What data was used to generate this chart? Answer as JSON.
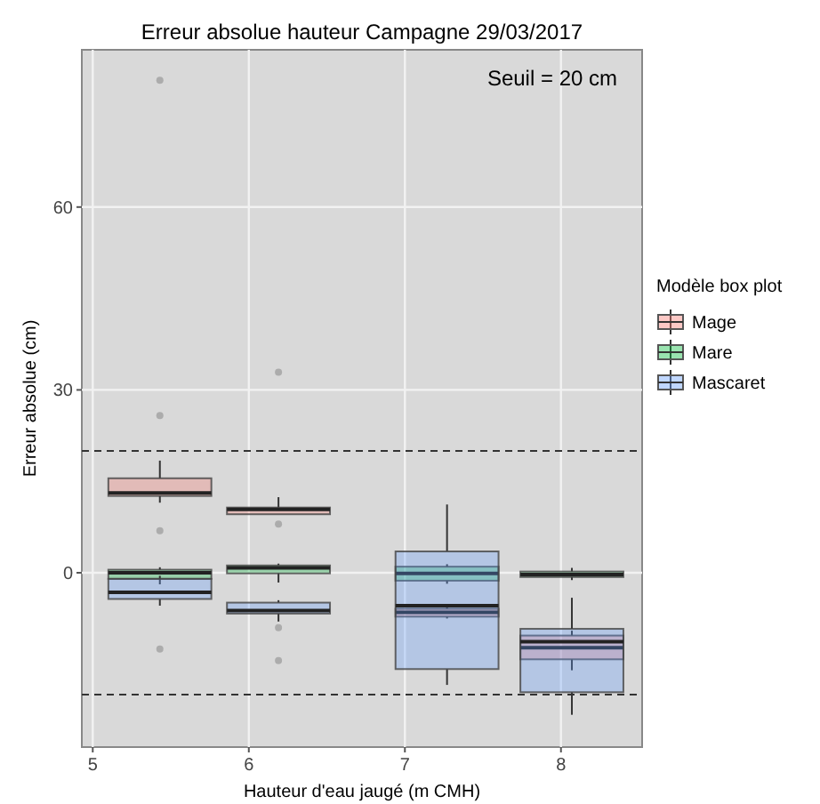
{
  "chart_data": {
    "type": "box",
    "title": "Erreur absolue hauteur Campagne 29/03/2017",
    "xlabel": "Hauteur d'eau jaugé (m CMH)",
    "ylabel": "Erreur absolue (cm)",
    "legend_title": "Modèle box plot",
    "legend": "right",
    "grid": true,
    "xlim": [
      4.93,
      8.52
    ],
    "xticks": [
      5,
      6,
      7,
      8
    ],
    "ylim": [
      -28.6,
      85.8
    ],
    "yticks": [
      0,
      30,
      60
    ],
    "ref_lines": [
      {
        "axis": "y",
        "value": 20,
        "line_style": "dashed"
      },
      {
        "axis": "y",
        "value": -20,
        "line_style": "dashed"
      }
    ],
    "annotations": [
      "Seuil = 20 cm"
    ],
    "series": [
      {
        "name": "Mage",
        "color": "#f8766d",
        "x": [
          5.43,
          6.19,
          7.27,
          8.07
        ],
        "boxes": [
          {
            "low": 11.5,
            "q1": 12.6,
            "median": 13.1,
            "q3": 15.5,
            "high": 18.4,
            "outliers": [
              80.8,
              25.8,
              6.9
            ]
          },
          {
            "low": 9.6,
            "q1": 9.6,
            "median": 10.4,
            "q3": 10.7,
            "high": 12.4,
            "outliers": [
              32.9,
              8.0
            ]
          },
          {
            "low": -7.5,
            "q1": -7.2,
            "median": -6.5,
            "q3": -5.9,
            "high": -5.6
          },
          {
            "low": -16.0,
            "q1": -14.2,
            "median": -12.3,
            "q3": -10.3,
            "high": -9.5
          }
        ]
      },
      {
        "name": "Mare",
        "color": "#00ba38",
        "x": [
          5.43,
          6.19,
          7.27,
          8.07
        ],
        "boxes": [
          {
            "low": -1.9,
            "q1": -1.0,
            "median": 0,
            "q3": 0.5,
            "high": 0.9
          },
          {
            "low": -1.6,
            "q1": -0.1,
            "median": 0.8,
            "q3": 1.2,
            "high": 1.5
          },
          {
            "low": -1.8,
            "q1": -1.3,
            "median": -0.1,
            "q3": 1.0,
            "high": 1.4
          },
          {
            "low": -1.2,
            "q1": -0.7,
            "median": -0.3,
            "q3": 0.2,
            "high": 0.8
          }
        ]
      },
      {
        "name": "Mascaret",
        "color": "#619cff",
        "x": [
          5.43,
          6.19,
          7.27,
          8.07
        ],
        "boxes": [
          {
            "low": -5.4,
            "q1": -4.3,
            "median": -3.2,
            "q3": -1.0,
            "high": -0.5,
            "outliers": [
              -12.5
            ]
          },
          {
            "low": -8.0,
            "q1": -6.7,
            "median": -6.2,
            "q3": -4.9,
            "high": -4.5,
            "outliers": [
              -9.0,
              -14.4
            ]
          },
          {
            "low": -18.4,
            "q1": -15.8,
            "median": -5.4,
            "q3": 3.5,
            "high": 11.2
          },
          {
            "low": -23.3,
            "q1": -19.6,
            "median": -11.3,
            "q3": -9.2,
            "high": -4.1
          }
        ]
      }
    ]
  }
}
